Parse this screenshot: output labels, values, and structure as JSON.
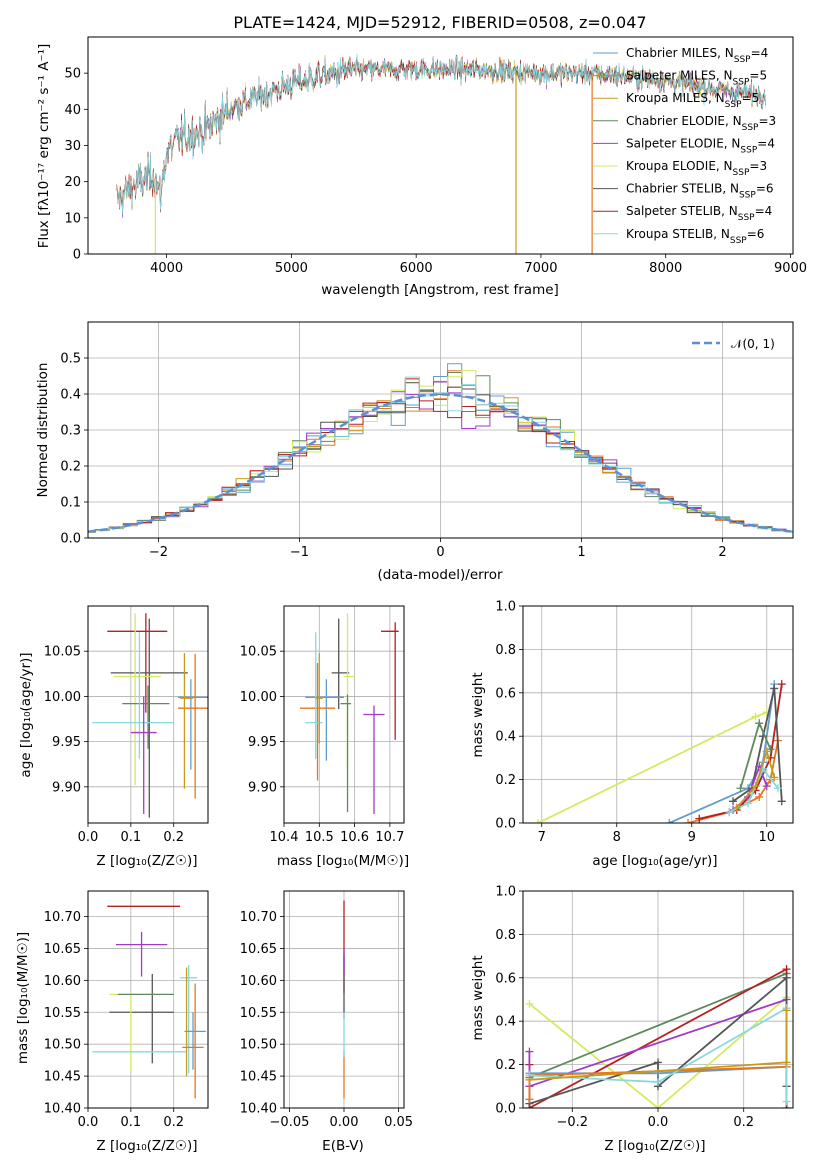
{
  "colors": {
    "Chabrier MILES": "#5f9ed1",
    "Salpeter MILES": "#e8761e",
    "Kroupa MILES": "#c99a1a",
    "Chabrier ELODIE": "#5e8a5e",
    "Salpeter ELODIE": "#a23ac6",
    "Kroupa ELODIE": "#d4ea5f",
    "Chabrier STELIB": "#555555",
    "Salpeter STELIB": "#b52020",
    "Kroupa STELIB": "#87d8e0"
  },
  "chart_data": [
    {
      "id": "spectrum",
      "type": "line",
      "title": "PLATE=1424, MJD=52912, FIBERID=0508, z=0.047",
      "xlabel": "wavelength [Angstrom, rest frame]",
      "ylabel": "Flux [fλ10⁻¹⁷ erg cm⁻² s⁻¹ A⁻¹]",
      "xlim": [
        3370,
        9020
      ],
      "ylim": [
        0,
        60
      ],
      "xticks": [
        4000,
        5000,
        6000,
        7000,
        8000,
        9000
      ],
      "yticks": [
        0,
        10,
        20,
        30,
        40,
        50
      ],
      "legend_position": "upper-right",
      "legend": [
        {
          "name": "Chabrier MILES, N",
          "sub": "SSP",
          "suffix": "=4"
        },
        {
          "name": "Salpeter MILES, N",
          "sub": "SSP",
          "suffix": "=5"
        },
        {
          "name": "Kroupa MILES, N",
          "sub": "SSP",
          "suffix": "=5"
        },
        {
          "name": "Chabrier ELODIE, N",
          "sub": "SSP",
          "suffix": "=3"
        },
        {
          "name": "Salpeter ELODIE, N",
          "sub": "SSP",
          "suffix": "=4"
        },
        {
          "name": "Kroupa ELODIE, N",
          "sub": "SSP",
          "suffix": "=3"
        },
        {
          "name": "Chabrier STELIB, N",
          "sub": "SSP",
          "suffix": "=6"
        },
        {
          "name": "Salpeter STELIB, N",
          "sub": "SSP",
          "suffix": "=4"
        },
        {
          "name": "Kroupa STELIB, N",
          "sub": "SSP",
          "suffix": "=6"
        }
      ],
      "series_keys": [
        "Chabrier MILES",
        "Salpeter MILES",
        "Kroupa MILES",
        "Chabrier ELODIE",
        "Salpeter ELODIE",
        "Kroupa ELODIE",
        "Chabrier STELIB",
        "Salpeter STELIB",
        "Kroupa STELIB"
      ],
      "continuum": {
        "wavelength": [
          3600,
          3700,
          3800,
          3900,
          3950,
          4000,
          4100,
          4200,
          4300,
          4400,
          4500,
          4700,
          5000,
          5200,
          5500,
          6000,
          6500,
          7000,
          7400,
          8000,
          8500,
          8800
        ],
        "flux": [
          15,
          18,
          20,
          22,
          16,
          28,
          32,
          33,
          34,
          37,
          40,
          43,
          47,
          49,
          51,
          51,
          51,
          50,
          50,
          48,
          45,
          44
        ]
      },
      "dropouts": [
        {
          "wavelength": 3910,
          "color": "Kroupa ELODIE"
        },
        {
          "wavelength": 6800,
          "color": "Kroupa MILES"
        },
        {
          "wavelength": 7410,
          "color": "Salpeter MILES"
        }
      ]
    },
    {
      "id": "residuals",
      "type": "histogram",
      "xlabel": "(data-model)/error",
      "ylabel": "Normed distribution",
      "xlim": [
        -2.5,
        2.5
      ],
      "ylim": [
        0,
        0.6
      ],
      "xticks": [
        -2,
        -1,
        0,
        1,
        2
      ],
      "yticks": [
        0.0,
        0.1,
        0.2,
        0.3,
        0.4,
        0.5
      ],
      "grid": true,
      "legend_position": "upper-right",
      "reference": {
        "label": "𝒩(0, 1)",
        "color": "#5b8fd6",
        "style": "dashed"
      },
      "bin_width": 0.1
    },
    {
      "id": "age-vs-Z",
      "type": "errorbar",
      "xlabel": "Z [log₁₀(Z/Z☉)]",
      "ylabel": "age  [log₁₀(age/yr)]",
      "xlim": [
        0.0,
        0.28
      ],
      "ylim": [
        9.86,
        10.1
      ],
      "xticks": [
        0.0,
        0.1,
        0.2
      ],
      "yticks": [
        9.9,
        9.95,
        10.0,
        10.05
      ],
      "grid": true,
      "points": [
        {
          "series": "Salpeter STELIB",
          "x": 0.135,
          "xerr": [
            0.09,
            0.05
          ],
          "y": 10.072,
          "yerr": [
            0.09,
            0.02
          ]
        },
        {
          "series": "Chabrier STELIB",
          "x": 0.143,
          "xerr": [
            0.09,
            0.09
          ],
          "y": 10.026,
          "yerr": [
            0.16,
            0.06
          ]
        },
        {
          "series": "Kroupa ELODIE",
          "x": 0.11,
          "xerr": [
            0.05,
            0.06
          ],
          "y": 10.022,
          "yerr": [
            0.12,
            0.07
          ]
        },
        {
          "series": "Chabrier MILES",
          "x": 0.24,
          "xerr": [
            0.03,
            0.04
          ],
          "y": 9.999,
          "yerr": [
            0.08,
            0.02
          ]
        },
        {
          "series": "Chabrier ELODIE",
          "x": 0.14,
          "xerr": [
            0.06,
            0.05
          ],
          "y": 9.992,
          "yerr": [
            0.05,
            0.02
          ]
        },
        {
          "series": "Salpeter MILES",
          "x": 0.25,
          "xerr": [
            0.04,
            0.03
          ],
          "y": 9.987,
          "yerr": [
            0.1,
            0.06
          ]
        },
        {
          "series": "Kroupa STELIB",
          "x": 0.12,
          "xerr": [
            0.11,
            0.08
          ],
          "y": 9.971,
          "yerr": [
            0.04,
            0.1
          ]
        },
        {
          "series": "Kroupa MILES",
          "x": 0.225,
          "xerr": [
            0.01,
            0.02
          ],
          "y": 9.998,
          "yerr": [
            0.1,
            0.05
          ]
        },
        {
          "series": "Salpeter ELODIE",
          "x": 0.13,
          "xerr": [
            0.03,
            0.03
          ],
          "y": 9.96,
          "yerr": [
            0.09,
            0.04
          ]
        }
      ]
    },
    {
      "id": "age-vs-mass",
      "type": "errorbar",
      "xlabel": "mass [log₁₀(M/M☉)]",
      "xlim": [
        10.4,
        10.74
      ],
      "ylim": [
        9.86,
        10.1
      ],
      "xticks": [
        10.4,
        10.5,
        10.6,
        10.7
      ],
      "yticks": [
        9.9,
        9.95,
        10.0,
        10.05
      ],
      "grid": true,
      "points": [
        {
          "series": "Salpeter STELIB",
          "x": 10.715,
          "xerr": [
            0.04,
            0.01
          ],
          "y": 10.072,
          "yerr": [
            0.12,
            0.01
          ]
        },
        {
          "series": "Chabrier STELIB",
          "x": 10.555,
          "xerr": [
            0.02,
            0.03
          ],
          "y": 10.026,
          "yerr": [
            0.04,
            0.06
          ]
        },
        {
          "series": "Kroupa ELODIE",
          "x": 10.58,
          "xerr": [
            0.01,
            0.02
          ],
          "y": 10.022,
          "yerr": [
            0.1,
            0.07
          ]
        },
        {
          "series": "Chabrier MILES",
          "x": 10.52,
          "xerr": [
            0.06,
            0.05
          ],
          "y": 9.999,
          "yerr": [
            0.07,
            0.02
          ]
        },
        {
          "series": "Chabrier ELODIE",
          "x": 10.58,
          "xerr": [
            0.02,
            0.01
          ],
          "y": 9.992,
          "yerr": [
            0.12,
            0.01
          ]
        },
        {
          "series": "Salpeter MILES",
          "x": 10.495,
          "xerr": [
            0.05,
            0.05
          ],
          "y": 9.987,
          "yerr": [
            0.08,
            0.05
          ]
        },
        {
          "series": "Kroupa STELIB",
          "x": 10.49,
          "xerr": [
            0.03,
            0.02
          ],
          "y": 9.971,
          "yerr": [
            0.04,
            0.1
          ]
        },
        {
          "series": "Kroupa MILES",
          "x": 10.5,
          "xerr": [
            0.01,
            0.01
          ],
          "y": 9.998,
          "yerr": [
            0.05,
            0.05
          ]
        },
        {
          "series": "Salpeter ELODIE",
          "x": 10.655,
          "xerr": [
            0.03,
            0.03
          ],
          "y": 9.98,
          "yerr": [
            0.11,
            0.01
          ]
        },
        {
          "series": "Kroupa ELODIE",
          "x": 10.6,
          "xerr": [
            0.0,
            0.0
          ],
          "y": 9.96,
          "yerr": [
            0.0,
            0.0
          ]
        }
      ]
    },
    {
      "id": "weight-vs-age",
      "type": "line",
      "xlabel": "age  [log₁₀(age/yr)]",
      "ylabel": "mass weight",
      "xlim": [
        6.75,
        10.35
      ],
      "ylim": [
        0,
        1.0
      ],
      "xticks": [
        7,
        8,
        9,
        10
      ],
      "yticks": [
        0.0,
        0.2,
        0.4,
        0.6,
        0.8,
        1.0
      ],
      "grid": true,
      "series": [
        {
          "key": "Kroupa ELODIE",
          "x": [
            6.95,
            9.85,
            10.0
          ],
          "y": [
            0.0,
            0.49,
            0.51
          ]
        },
        {
          "key": "Chabrier MILES",
          "x": [
            8.7,
            9.75,
            9.95,
            10.1
          ],
          "y": [
            0.0,
            0.16,
            0.28,
            0.64
          ]
        },
        {
          "key": "Salpeter MILES",
          "x": [
            8.95,
            9.5,
            9.9,
            10.05,
            10.15
          ],
          "y": [
            0.0,
            0.05,
            0.12,
            0.2,
            0.38
          ]
        },
        {
          "key": "Salpeter STELIB",
          "x": [
            9.1,
            9.6,
            9.85,
            10.05,
            10.2
          ],
          "y": [
            0.02,
            0.06,
            0.15,
            0.3,
            0.64
          ]
        },
        {
          "key": "Chabrier STELIB",
          "x": [
            9.55,
            9.8,
            9.95,
            10.1,
            10.2
          ],
          "y": [
            0.1,
            0.16,
            0.4,
            0.62,
            0.1
          ]
        },
        {
          "key": "Salpeter ELODIE",
          "x": [
            9.55,
            9.75,
            9.9,
            10.0
          ],
          "y": [
            0.06,
            0.12,
            0.26,
            0.17
          ]
        },
        {
          "key": "Kroupa STELIB",
          "x": [
            9.5,
            9.75,
            9.95,
            10.15
          ],
          "y": [
            0.05,
            0.09,
            0.25,
            0.16
          ]
        },
        {
          "key": "Chabrier ELODIE",
          "x": [
            9.65,
            9.9,
            10.05
          ],
          "y": [
            0.16,
            0.46,
            0.34
          ]
        },
        {
          "key": "Kroupa MILES",
          "x": [
            9.6,
            9.85,
            10.0,
            10.1
          ],
          "y": [
            0.07,
            0.17,
            0.33,
            0.21
          ]
        }
      ]
    },
    {
      "id": "mass-vs-Z",
      "type": "errorbar",
      "xlabel": "Z [log₁₀(Z/Z☉)]",
      "ylabel": "mass [log₁₀(M/M☉)]",
      "xlim": [
        0.0,
        0.28
      ],
      "ylim": [
        10.4,
        10.74
      ],
      "xticks": [
        0.0,
        0.1,
        0.2
      ],
      "yticks": [
        10.4,
        10.45,
        10.5,
        10.55,
        10.6,
        10.65,
        10.7
      ],
      "grid": true,
      "points": [
        {
          "series": "Salpeter STELIB",
          "x": 0.135,
          "xerr": [
            0.09,
            0.08
          ],
          "y": 10.716,
          "yerr": [
            0.0,
            0.0
          ]
        },
        {
          "series": "Salpeter ELODIE",
          "x": 0.125,
          "xerr": [
            0.06,
            0.06
          ],
          "y": 10.656,
          "yerr": [
            0.05,
            0.02
          ]
        },
        {
          "series": "Kroupa STELIB",
          "x": 0.235,
          "xerr": [
            0.02,
            0.02
          ],
          "y": 10.604,
          "yerr": [
            0.15,
            0.02
          ]
        },
        {
          "series": "Chabrier STELIB",
          "x": 0.15,
          "xerr": [
            0.1,
            0.05
          ],
          "y": 10.55,
          "yerr": [
            0.08,
            0.06
          ]
        },
        {
          "series": "Kroupa ELODIE",
          "x": 0.1,
          "xerr": [
            0.05,
            0.06
          ],
          "y": 10.578,
          "yerr": [
            0.12,
            0.0
          ]
        },
        {
          "series": "Chabrier ELODIE",
          "x": 0.14,
          "xerr": [
            0.07,
            0.06
          ],
          "y": 10.578,
          "yerr": [
            0.0,
            0.0
          ]
        },
        {
          "series": "Chabrier MILES",
          "x": 0.245,
          "xerr": [
            0.02,
            0.03
          ],
          "y": 10.52,
          "yerr": [
            0.06,
            0.03
          ]
        },
        {
          "series": "Salpeter MILES",
          "x": 0.25,
          "xerr": [
            0.03,
            0.02
          ],
          "y": 10.495,
          "yerr": [
            0.08,
            0.1
          ]
        },
        {
          "series": "Kroupa STELIB",
          "x": 0.12,
          "xerr": [
            0.11,
            0.11
          ],
          "y": 10.488,
          "yerr": [
            0.0,
            0.0
          ]
        },
        {
          "series": "Kroupa MILES",
          "x": 0.23,
          "xerr": [
            0.0,
            0.0
          ],
          "y": 10.52,
          "yerr": [
            0.07,
            0.1
          ]
        }
      ]
    },
    {
      "id": "mass-vs-EBV",
      "type": "errorbar",
      "xlabel": "E(B-V)",
      "xlim": [
        -0.055,
        0.055
      ],
      "ylim": [
        10.4,
        10.74
      ],
      "xticks": [
        -0.05,
        0.0,
        0.05
      ],
      "yticks": [
        10.4,
        10.45,
        10.5,
        10.55,
        10.6,
        10.65,
        10.7
      ],
      "grid": true,
      "points": [
        {
          "series": "Salpeter STELIB",
          "x": 0.0,
          "y": 10.62,
          "yerr": [
            0.04,
            0.105
          ]
        },
        {
          "series": "Chabrier STELIB",
          "x": 0.0,
          "y": 10.58,
          "yerr": [
            0.04,
            0.06
          ]
        },
        {
          "series": "Salpeter MILES",
          "x": 0.0,
          "y": 10.47,
          "yerr": [
            0.055,
            0.02
          ]
        },
        {
          "series": "Kroupa STELIB",
          "x": 0.0,
          "y": 10.53,
          "yerr": [
            0.05,
            0.02
          ]
        },
        {
          "series": "Salpeter ELODIE",
          "x": 0.0,
          "y": 10.63,
          "yerr": [
            0.02,
            0.02
          ]
        }
      ]
    },
    {
      "id": "weight-vs-Z",
      "type": "line",
      "xlabel": "Z [log₁₀(Z/Z☉)]",
      "ylabel": "mass weight",
      "xlim": [
        -0.315,
        0.315
      ],
      "ylim": [
        0,
        1.0
      ],
      "xticks": [
        -0.2,
        0.0,
        0.2
      ],
      "yticks": [
        0.0,
        0.2,
        0.4,
        0.6,
        0.8,
        1.0
      ],
      "grid": true,
      "series": [
        {
          "key": "Kroupa ELODIE",
          "x": [
            -0.3,
            0.0,
            0.3
          ],
          "y": [
            0.48,
            0.0,
            0.51
          ]
        },
        {
          "key": "Chabrier ELODIE",
          "x": [
            -0.3,
            0.3
          ],
          "y": [
            0.14,
            0.62
          ]
        },
        {
          "key": "Salpeter STELIB",
          "x": [
            -0.3,
            -0.3,
            0.3,
            0.3
          ],
          "y": [
            0.2,
            0.0,
            0.64,
            0.0
          ]
        },
        {
          "key": "Salpeter ELODIE",
          "x": [
            -0.3,
            -0.3,
            0.3
          ],
          "y": [
            0.26,
            0.1,
            0.5
          ]
        },
        {
          "key": "Chabrier STELIB",
          "x": [
            -0.3,
            0.0,
            0.0,
            0.3,
            0.3
          ],
          "y": [
            0.02,
            0.21,
            0.1,
            0.6,
            0.1
          ]
        },
        {
          "key": "Chabrier MILES",
          "x": [
            -0.3,
            0.0,
            0.3
          ],
          "y": [
            0.16,
            0.16,
            0.19
          ]
        },
        {
          "key": "Salpeter MILES",
          "x": [
            -0.3,
            -0.3,
            0.3
          ],
          "y": [
            0.04,
            0.15,
            0.19
          ]
        },
        {
          "key": "Kroupa STELIB",
          "x": [
            -0.3,
            0.0,
            0.3,
            0.3
          ],
          "y": [
            0.15,
            0.12,
            0.46,
            0.03
          ]
        },
        {
          "key": "Kroupa MILES",
          "x": [
            -0.3,
            0.3,
            0.3
          ],
          "y": [
            0.13,
            0.21,
            0.45
          ]
        }
      ]
    }
  ]
}
